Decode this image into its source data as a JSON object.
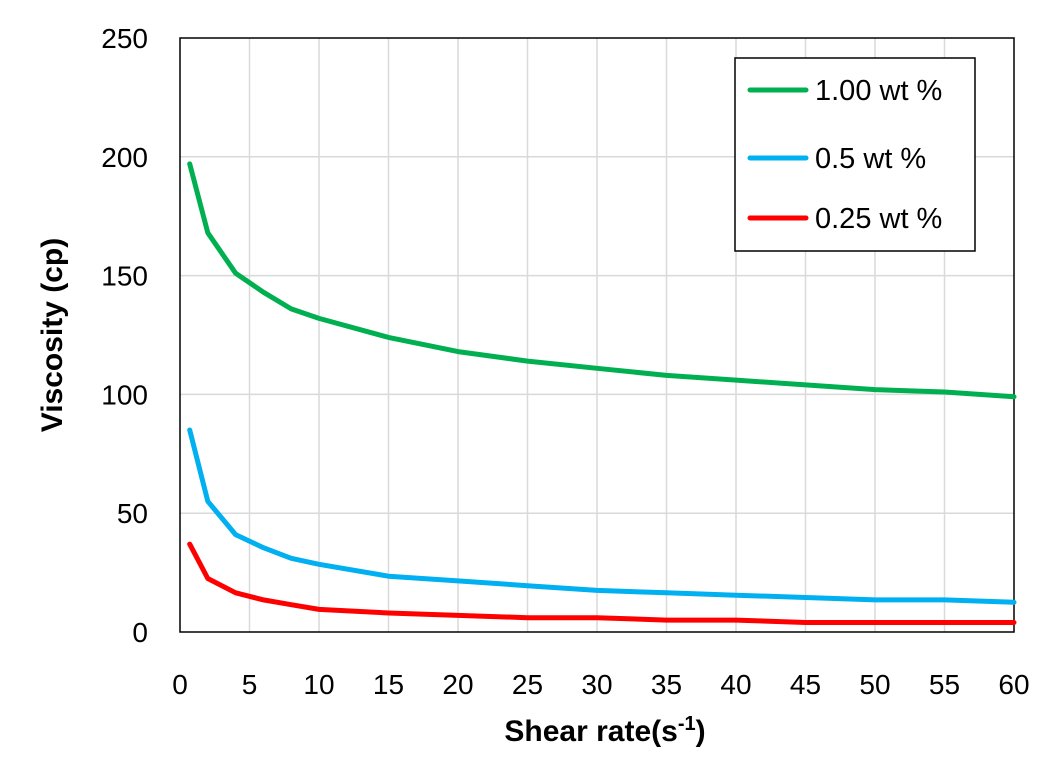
{
  "chart_data": {
    "type": "line",
    "title": "",
    "xlabel": "Shear rate(s",
    "xlabel_superscript": "-1",
    "xlabel_suffix": ")",
    "ylabel": "Viscosity (cp)",
    "xlim": [
      0,
      60
    ],
    "ylim": [
      0,
      250
    ],
    "xticks": [
      0,
      5,
      10,
      15,
      20,
      25,
      30,
      35,
      40,
      45,
      50,
      55,
      60
    ],
    "yticks": [
      0,
      50,
      100,
      150,
      200,
      250
    ],
    "grid": true,
    "legend_position": "top-right",
    "series": [
      {
        "name": "1.00 wt %",
        "color": "#00b050",
        "x": [
          0.7,
          2,
          4,
          6,
          8,
          10,
          15,
          20,
          25,
          30,
          35,
          40,
          45,
          50,
          55,
          60
        ],
        "y": [
          197,
          168,
          151,
          143,
          136,
          132,
          124,
          118,
          114,
          111,
          108,
          106,
          104,
          102,
          101,
          99
        ]
      },
      {
        "name": "0.5 wt %",
        "color": "#00b0f0",
        "x": [
          0.7,
          2,
          4,
          6,
          8,
          10,
          15,
          20,
          25,
          30,
          35,
          40,
          45,
          50,
          55,
          60
        ],
        "y": [
          85,
          55,
          41,
          35.5,
          31,
          28.5,
          23.5,
          21.5,
          19.5,
          17.5,
          16.5,
          15.5,
          14.5,
          13.5,
          13.5,
          12.5
        ]
      },
      {
        "name": "0.25 wt %",
        "color": "#ff0000",
        "x": [
          0.7,
          2,
          4,
          6,
          8,
          10,
          15,
          20,
          25,
          30,
          35,
          40,
          45,
          50,
          55,
          60
        ],
        "y": [
          37,
          22.5,
          16.5,
          13.5,
          11.5,
          9.5,
          8,
          7,
          6,
          6,
          5,
          5,
          4,
          4,
          4,
          4
        ]
      }
    ]
  }
}
